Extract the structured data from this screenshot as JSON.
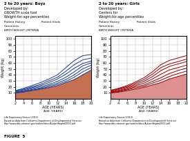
{
  "chart_data": [
    {
      "type": "line",
      "title": "2 to 20 years: Boys",
      "subtitle": "Developed by:\nGROWTH scale tool\nWeight-for-age percentiles",
      "annotations": [
        "Patient History",
        "Patient Vitals",
        "Comments",
        "BIRTH WEIGHT CRITERIA",
        "AGE (YEARS)",
        "Life Expectancy Source (2013)\nBased on data from California Department of Developmental Services\nhttp://www.dds.cahwnet.gov/autism/docs/AutismReport2003.pdf"
      ],
      "xlabel": "AGE (YEARS)",
      "ylabel": "Weight (kg)",
      "x": [
        2,
        4,
        6,
        8,
        10,
        12,
        14,
        16,
        18,
        20
      ],
      "xlim": [
        2,
        20
      ],
      "ylim": [
        0,
        105
      ],
      "xticks": [
        2,
        4,
        6,
        8,
        10,
        12,
        14,
        16,
        18,
        20
      ],
      "yticks": [
        10,
        20,
        30,
        40,
        50,
        60,
        70,
        80,
        90,
        100
      ],
      "grid": true,
      "series": [
        {
          "type": "area",
          "color": "#c47050",
          "values": [
            9.5,
            11,
            13.5,
            16,
            18.5,
            22,
            27,
            32,
            40,
            48
          ]
        },
        {
          "color": "#1a3a8c",
          "values": [
            13.5,
            17.5,
            22,
            27,
            33,
            40,
            52,
            64,
            72,
            74
          ]
        },
        {
          "color": "#1a3a8c",
          "values": [
            12.5,
            16,
            20,
            24,
            30,
            36,
            46,
            57,
            65,
            68
          ]
        },
        {
          "color": "#1a3a8c",
          "values": [
            12,
            15,
            18.5,
            22,
            27,
            33,
            41,
            51,
            59,
            63
          ]
        },
        {
          "color": "#1a3a8c",
          "values": [
            11,
            13.5,
            17,
            20,
            24,
            29,
            36,
            45,
            55,
            60
          ]
        },
        {
          "color": "#1a3a8c",
          "values": [
            10.5,
            12.5,
            15.5,
            18,
            22,
            26,
            32,
            40,
            50,
            56
          ]
        },
        {
          "color": "#1a3a8c",
          "values": [
            10,
            12,
            14.5,
            17,
            20,
            24,
            29,
            36,
            45,
            52
          ]
        },
        {
          "color": "#1a3a8c",
          "values": [
            9.5,
            11,
            13.5,
            16,
            18.5,
            22,
            27,
            32,
            40,
            48
          ]
        }
      ]
    },
    {
      "type": "line",
      "title": "2 to 20 years: Girls",
      "subtitle": "Developed by:\nCenters for\nWeight-for-age percentiles",
      "annotations": [
        "Patient History",
        "Patient Vitals",
        "Comments",
        "BIRTH WEIGHT CRITERIA",
        "AGE (YEARS)",
        "Life Expectancy Source (2013)\nBased on data from California Department of Developmental Services\nhttp://www.dds.cahwnet.gov/autism/docs/AutismReport2003.pdf"
      ],
      "xlabel": "AGE (YEARS)",
      "ylabel": "Weight (kg)",
      "x": [
        2,
        4,
        6,
        8,
        10,
        12,
        14,
        16,
        18,
        20
      ],
      "xlim": [
        2,
        20
      ],
      "ylim": [
        0,
        105
      ],
      "xticks": [
        2,
        4,
        6,
        8,
        10,
        12,
        14,
        16,
        18,
        20
      ],
      "yticks": [
        10,
        20,
        30,
        40,
        50,
        60,
        70,
        80,
        90,
        100
      ],
      "grid": true,
      "series": [
        {
          "type": "area",
          "color": "#dd9090",
          "values": [
            9.5,
            11,
            13.5,
            16,
            19,
            23,
            27,
            33,
            37,
            41
          ]
        },
        {
          "color": "#990000",
          "values": [
            14,
            17.5,
            22,
            28,
            35,
            45,
            57,
            64,
            68,
            72
          ]
        },
        {
          "color": "#990000",
          "values": [
            13,
            16.5,
            20.5,
            26,
            32,
            41,
            52,
            58,
            62,
            66
          ]
        },
        {
          "color": "#990000",
          "values": [
            12,
            15.5,
            19,
            24,
            29,
            37,
            47,
            54,
            58,
            62
          ]
        },
        {
          "color": "#990000",
          "values": [
            11,
            14,
            17.5,
            22,
            26,
            33,
            41,
            48,
            52,
            56
          ]
        },
        {
          "color": "#990000",
          "values": [
            10.5,
            13,
            16,
            20,
            23,
            29,
            35,
            42,
            47,
            51
          ]
        },
        {
          "color": "#990000",
          "values": [
            10,
            12,
            15,
            18,
            21,
            26,
            31,
            37,
            42,
            46
          ]
        },
        {
          "color": "#990000",
          "values": [
            9.5,
            11,
            13.5,
            16,
            19,
            23,
            27,
            33,
            37,
            41
          ]
        }
      ]
    }
  ],
  "annotations": [
    "FIGURE  5"
  ]
}
